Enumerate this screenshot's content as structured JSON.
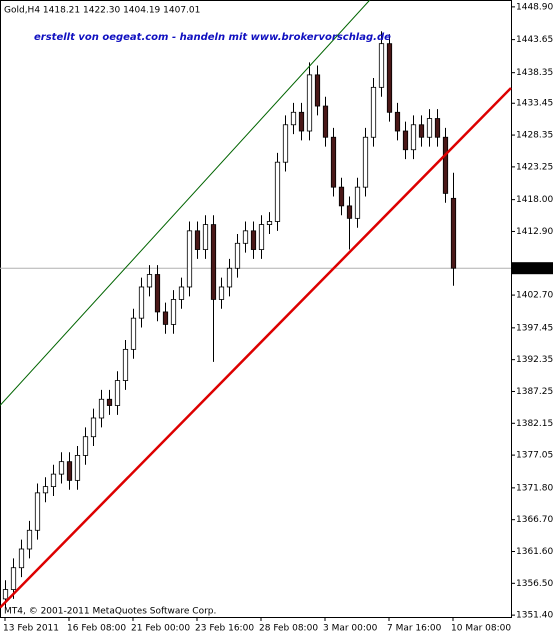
{
  "chart_data": {
    "type": "candlestick",
    "title": "Gold,H4  1418.21 1422.30 1404.19 1407.01",
    "annotation": "erstellt von oegeat.com - handeln mit www.brokervorschlag.de",
    "footer": "MT4, © 2001-2011 MetaQuotes Software Corp.",
    "open": [
      1354,
      1355.5,
      1359,
      1362,
      1365,
      1371,
      1372,
      1374,
      1376,
      1373,
      1377,
      1380,
      1383,
      1386,
      1385,
      1389,
      1394,
      1399,
      1404,
      1406,
      1400,
      1398,
      1402,
      1404,
      1413,
      1410,
      1414,
      1402,
      1404,
      1407,
      1411,
      1413,
      1410,
      1414,
      1414.5,
      1424,
      1430,
      1432,
      1429,
      1438,
      1433,
      1428,
      1420,
      1417,
      1415,
      1420,
      1428,
      1436,
      1443,
      1432,
      1429,
      1426,
      1430,
      1428,
      1431,
      1428,
      1418.21
    ],
    "high": [
      1357,
      1360.5,
      1363.5,
      1366.5,
      1372.5,
      1373.5,
      1375.5,
      1377.5,
      1377.5,
      1378.5,
      1381.5,
      1384.5,
      1387.5,
      1387.5,
      1390.5,
      1395.5,
      1400.5,
      1405.5,
      1407.5,
      1407.5,
      1401.5,
      1403.5,
      1405.5,
      1414.5,
      1414.5,
      1415.5,
      1415.5,
      1405.5,
      1408.5,
      1412.5,
      1414.5,
      1414.5,
      1415.5,
      1416,
      1425.5,
      1431.5,
      1433.5,
      1433.5,
      1440,
      1439.5,
      1434.5,
      1429.5,
      1421.5,
      1418.5,
      1421.5,
      1429.5,
      1437.5,
      1445,
      1444.5,
      1433.5,
      1430.5,
      1431.5,
      1431.5,
      1432.5,
      1432.5,
      1429.5,
      1422.3
    ],
    "low": [
      1352.5,
      1354,
      1357.5,
      1360.5,
      1363.5,
      1369.5,
      1370.5,
      1372.5,
      1371.5,
      1371.5,
      1375.5,
      1378.5,
      1381.5,
      1383.5,
      1383.5,
      1387.5,
      1392.5,
      1397.5,
      1402.5,
      1398.5,
      1396.5,
      1396.5,
      1400.5,
      1402.5,
      1408.5,
      1408.5,
      1392,
      1400.5,
      1402.5,
      1405.5,
      1409.5,
      1408.5,
      1408.5,
      1412.5,
      1413,
      1422.5,
      1428.5,
      1427.5,
      1427.5,
      1431.5,
      1426.5,
      1418.5,
      1415.5,
      1410,
      1413.5,
      1418.5,
      1426.5,
      1434.5,
      1430.5,
      1427.5,
      1424.5,
      1424.5,
      1426.5,
      1426.5,
      1426.5,
      1417.5,
      1404.19
    ],
    "close": [
      1355.5,
      1359,
      1362,
      1365,
      1371,
      1372,
      1374,
      1376,
      1373,
      1377,
      1380,
      1383,
      1386,
      1385,
      1389,
      1394,
      1399,
      1404,
      1406,
      1400,
      1398,
      1402,
      1404,
      1413,
      1410,
      1414,
      1402,
      1404,
      1407,
      1411,
      1413,
      1410,
      1414,
      1414.5,
      1424,
      1430,
      1432,
      1429,
      1438,
      1433,
      1428,
      1420,
      1417,
      1415,
      1420,
      1428,
      1436,
      1443,
      1432,
      1429,
      1426,
      1430,
      1428,
      1431,
      1428,
      1419,
      1407.01
    ],
    "up_color": "#ffffff",
    "down_color": "#4a1818",
    "wick_color": "#000000",
    "last_price": {
      "value": 1407.01,
      "label": "1407.01"
    },
    "lines": [
      {
        "color": "#dd0000",
        "width": 2.5,
        "points": [
          [
            -0.625,
            1352.6
          ],
          [
            63.25,
            1435.9
          ]
        ]
      },
      {
        "color": "#006400",
        "width": 1,
        "points": [
          [
            -0.625,
            1385
          ],
          [
            45.6,
            1450
          ]
        ]
      }
    ],
    "xlim": [
      -0.625,
      63.25
    ],
    "ylim": [
      1351.1,
      1450.0
    ],
    "xticks": [
      {
        "value": 0,
        "label": "13 Feb 2011"
      },
      {
        "value": 8,
        "label": "16 Feb 08:00"
      },
      {
        "value": 16,
        "label": "21 Feb 00:00"
      },
      {
        "value": 24,
        "label": "23 Feb 16:00"
      },
      {
        "value": 32,
        "label": "28 Feb 08:00"
      },
      {
        "value": 40,
        "label": "3 Mar 00:00"
      },
      {
        "value": 48,
        "label": "7 Mar 16:00"
      },
      {
        "value": 56,
        "label": "10 Mar 08:00"
      }
    ],
    "yticks": [
      {
        "value": 1448.9,
        "label": "1448.90"
      },
      {
        "value": 1443.65,
        "label": "1443.65"
      },
      {
        "value": 1438.35,
        "label": "1438.35"
      },
      {
        "value": 1433.45,
        "label": "1433.45"
      },
      {
        "value": 1428.35,
        "label": "1428.35"
      },
      {
        "value": 1423.25,
        "label": "1423.25"
      },
      {
        "value": 1418.0,
        "label": "1418.00"
      },
      {
        "value": 1412.9,
        "label": "1412.90"
      },
      {
        "value": 1402.7,
        "label": "1402.70"
      },
      {
        "value": 1397.45,
        "label": "1397.45"
      },
      {
        "value": 1392.35,
        "label": "1392.35"
      },
      {
        "value": 1387.25,
        "label": "1387.25"
      },
      {
        "value": 1382.15,
        "label": "1382.15"
      },
      {
        "value": 1377.05,
        "label": "1377.05"
      },
      {
        "value": 1371.8,
        "label": "1371.80"
      },
      {
        "value": 1366.7,
        "label": "1366.70"
      },
      {
        "value": 1361.6,
        "label": "1361.60"
      },
      {
        "value": 1356.5,
        "label": "1356.50"
      },
      {
        "value": 1351.4,
        "label": "1351.40"
      }
    ]
  }
}
